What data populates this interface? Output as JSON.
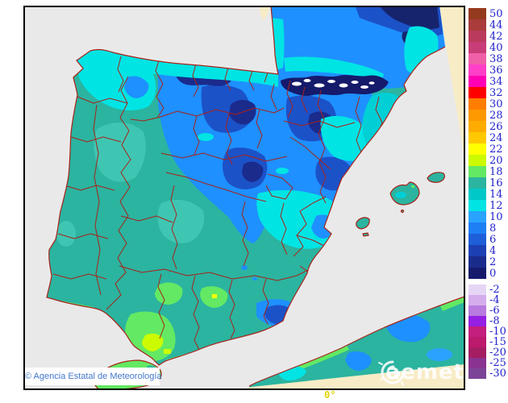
{
  "map": {
    "copyright": "© Agencia Estatal de Meteorología",
    "watermark": "aemet",
    "meridian_label": "0°"
  },
  "colors": {
    "sea": "#E9E9E9",
    "outside_region": "#F8ECC6",
    "province_border": "#A8221A",
    "frame": "#000000",
    "legend_text": "#2222CC",
    "copyright_text": "#4477CC",
    "meridian_text": "#E3D400"
  },
  "legend": {
    "blocks": [
      {
        "name": "above-zero",
        "entries": [
          {
            "value": "50",
            "color": "#963A1E"
          },
          {
            "value": "44",
            "color": "#AA3C3C"
          },
          {
            "value": "42",
            "color": "#BA3A5C"
          },
          {
            "value": "40",
            "color": "#C83C78"
          },
          {
            "value": "38",
            "color": "#F05FA8"
          },
          {
            "value": "36",
            "color": "#FF3FC8"
          },
          {
            "value": "34",
            "color": "#FF00B4"
          },
          {
            "value": "32",
            "color": "#FF0000"
          },
          {
            "value": "30",
            "color": "#FF7D00"
          },
          {
            "value": "28",
            "color": "#FF9900"
          },
          {
            "value": "26",
            "color": "#FFAC00"
          },
          {
            "value": "24",
            "color": "#FFC800"
          },
          {
            "value": "22",
            "color": "#FFFF00"
          },
          {
            "value": "20",
            "color": "#CCFA00"
          },
          {
            "value": "18",
            "color": "#63E963"
          },
          {
            "value": "16",
            "color": "#2BB4A0"
          },
          {
            "value": "14",
            "color": "#00C8C8"
          },
          {
            "value": "12",
            "color": "#00E4E4"
          },
          {
            "value": "10",
            "color": "#29A3FF"
          },
          {
            "value": "8",
            "color": "#1E7FF5"
          },
          {
            "value": "6",
            "color": "#1E5FD9"
          },
          {
            "value": "4",
            "color": "#1C40B4"
          },
          {
            "value": "2",
            "color": "#1A2B8C"
          },
          {
            "value": "0",
            "color": "#151A6B"
          }
        ]
      },
      {
        "name": "below-zero",
        "entries": [
          {
            "value": "-2",
            "color": "#E6D6F6"
          },
          {
            "value": "-4",
            "color": "#D5ACEC"
          },
          {
            "value": "-6",
            "color": "#B87ADE"
          },
          {
            "value": "-8",
            "color": "#951FE3"
          },
          {
            "value": "-10",
            "color": "#C41E7E"
          },
          {
            "value": "-15",
            "color": "#BC1A6C"
          },
          {
            "value": "-20",
            "color": "#A51D62"
          },
          {
            "value": "-25",
            "color": "#8B3390"
          },
          {
            "value": "-30",
            "color": "#7B4496"
          }
        ]
      }
    ]
  }
}
